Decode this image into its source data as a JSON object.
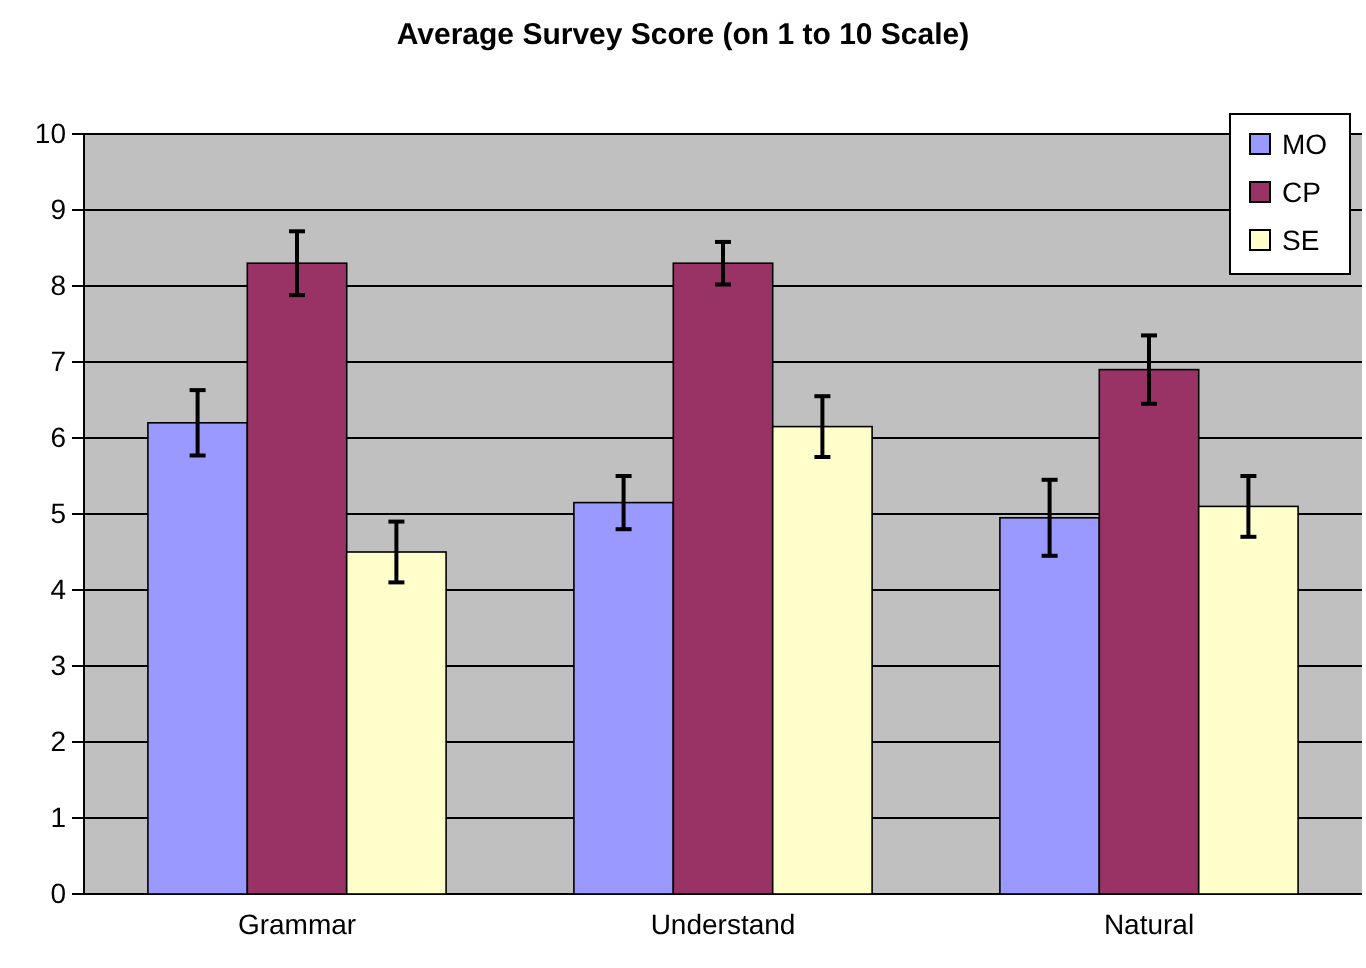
{
  "chart_data": {
    "type": "bar",
    "title": "Average Survey Score (on 1 to 10 Scale)",
    "categories": [
      "Grammar",
      "Understand",
      "Natural"
    ],
    "series": [
      {
        "name": "MO",
        "color": "#9999ff",
        "values": [
          6.2,
          5.15,
          4.95
        ],
        "errors": [
          0.43,
          0.35,
          0.5
        ]
      },
      {
        "name": "CP",
        "color": "#993366",
        "values": [
          8.3,
          8.3,
          6.9
        ],
        "errors": [
          0.42,
          0.28,
          0.45
        ]
      },
      {
        "name": "SE",
        "color": "#ffffcc",
        "values": [
          4.5,
          6.15,
          5.1
        ],
        "errors": [
          0.4,
          0.4,
          0.4
        ]
      }
    ],
    "ylim": [
      0,
      10
    ],
    "yticks": [
      0,
      1,
      2,
      3,
      4,
      5,
      6,
      7,
      8,
      9,
      10
    ],
    "grid": "y",
    "legend": "top right"
  }
}
